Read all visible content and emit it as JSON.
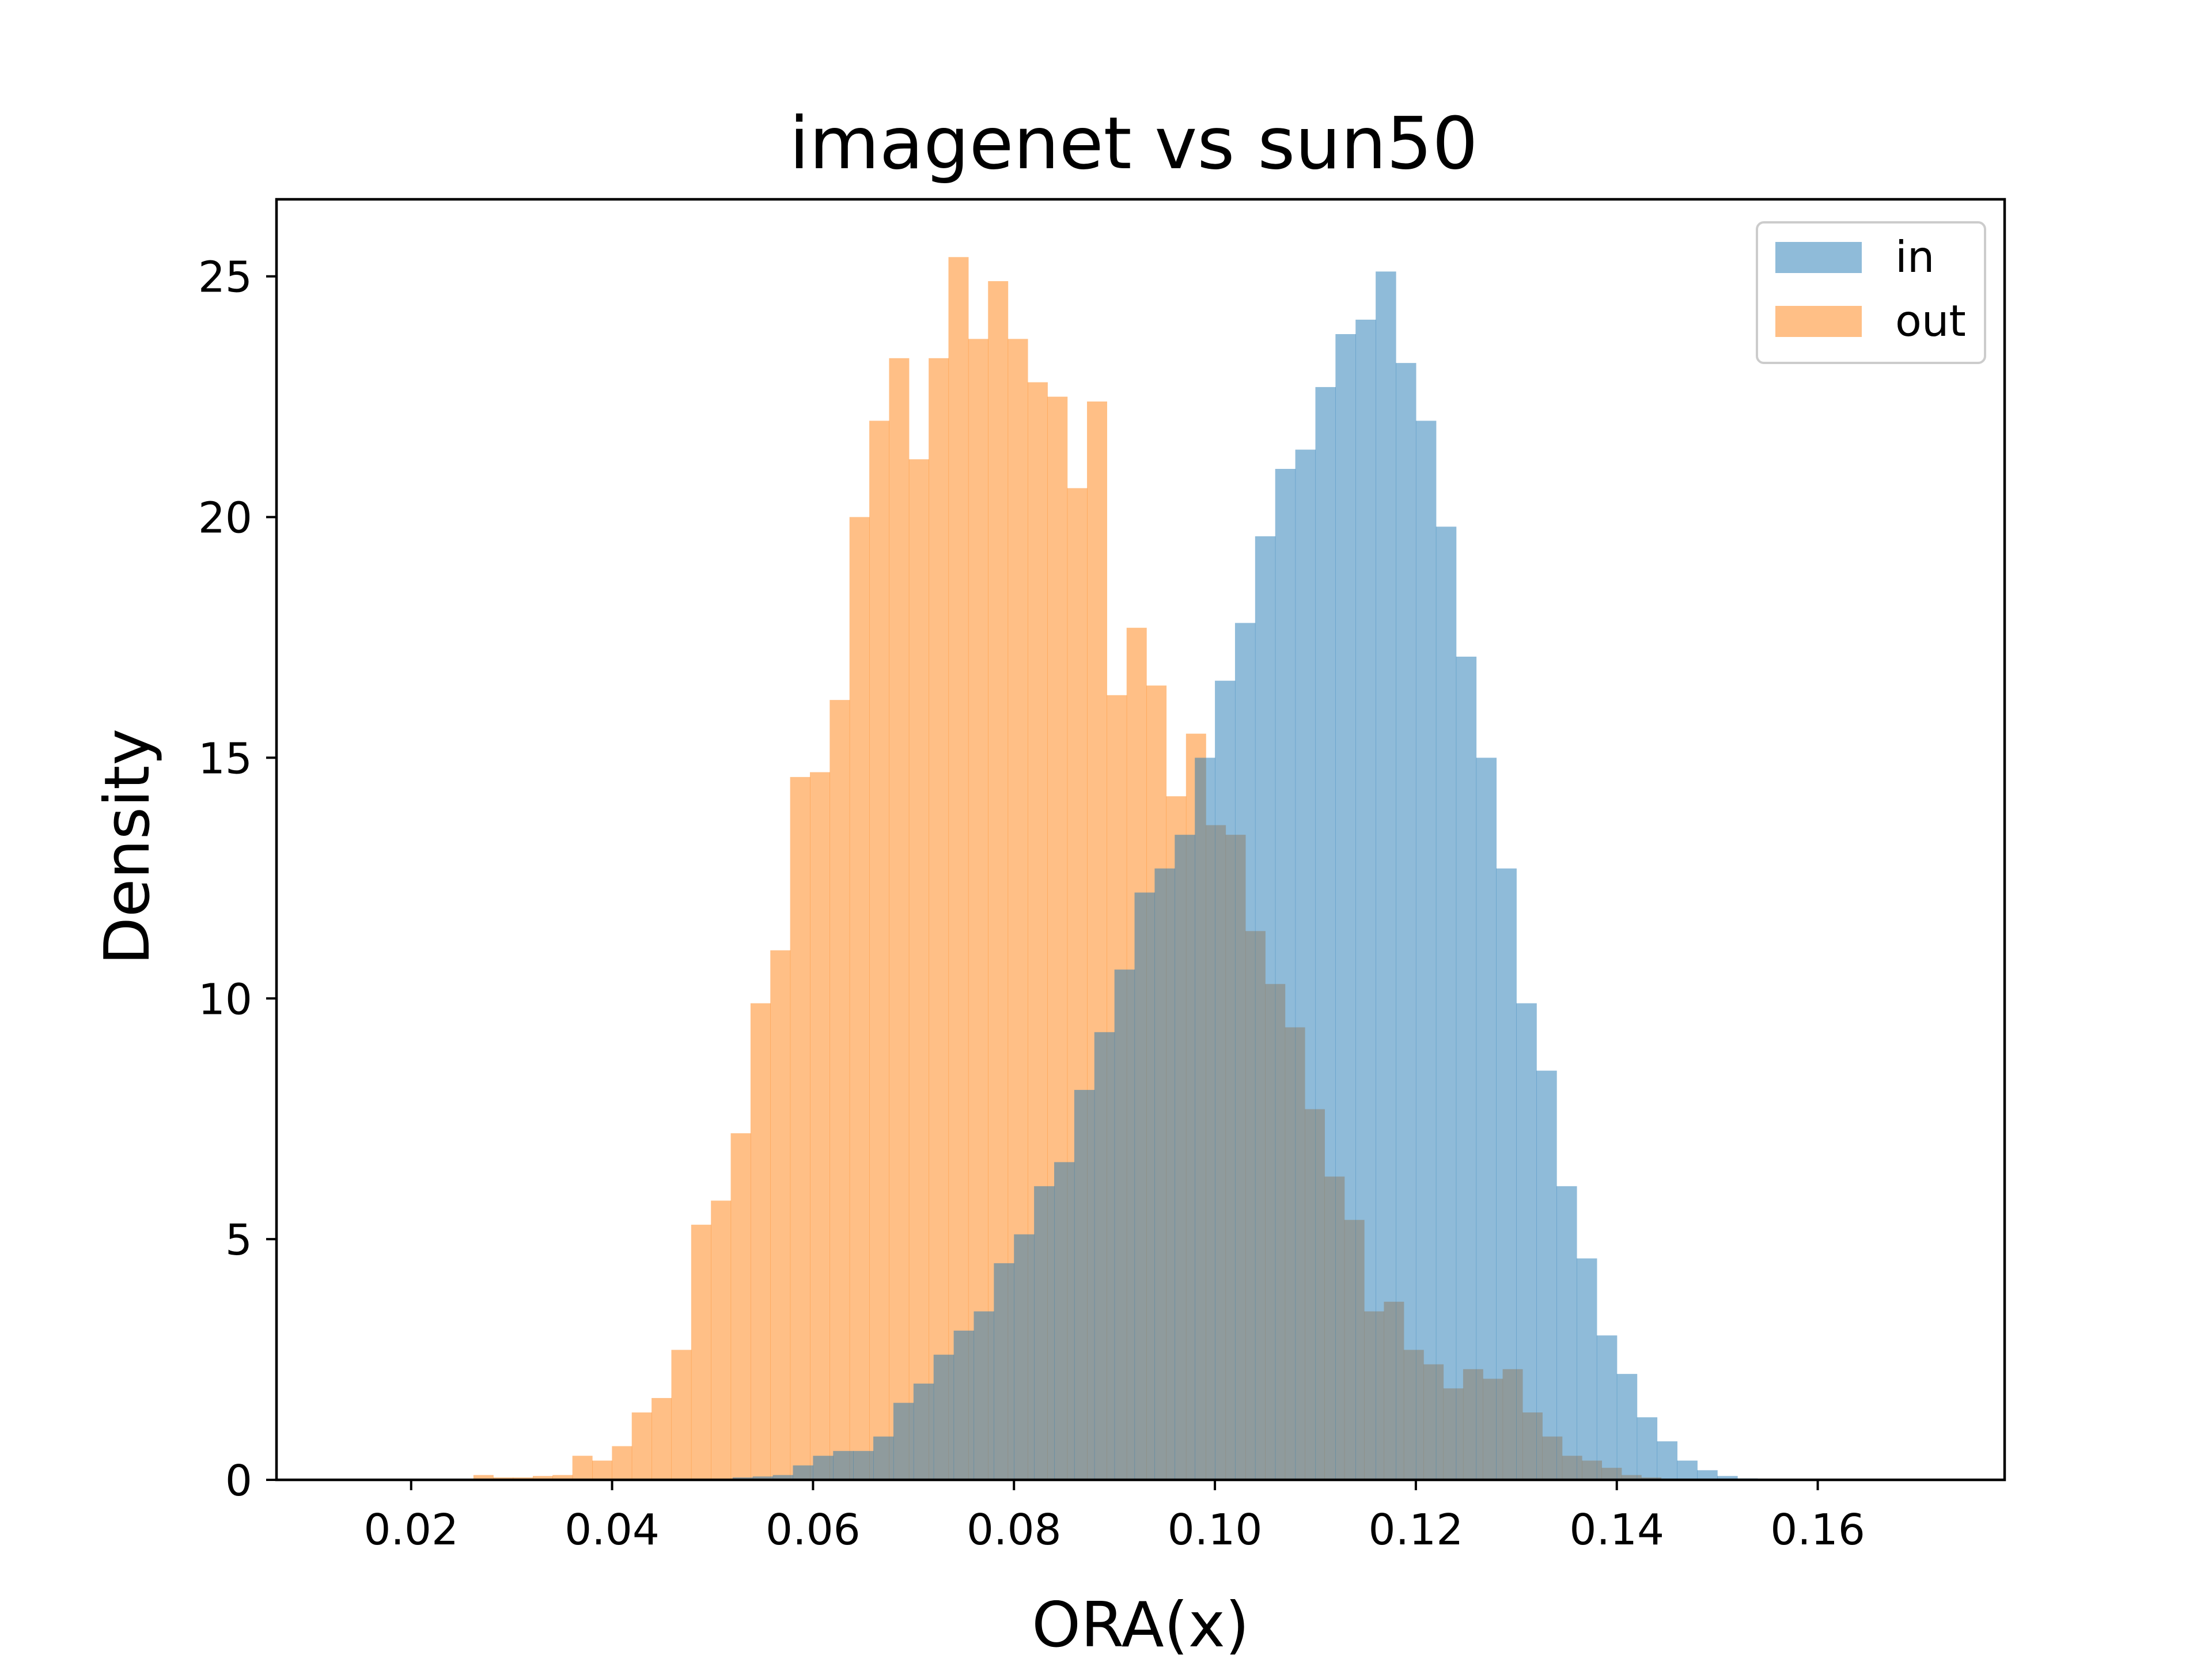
{
  "chart_data": {
    "type": "bar",
    "subtype": "overlapping-histogram",
    "title": "imagenet vs sun50",
    "xlabel": "ORA(x)",
    "ylabel": "Density",
    "xlim": [
      0.0066,
      0.1786
    ],
    "ylim": [
      0,
      26.6
    ],
    "xticks": [
      "0.02",
      "0.04",
      "0.06",
      "0.08",
      "0.10",
      "0.12",
      "0.14",
      "0.16"
    ],
    "xtick_values": [
      0.02,
      0.04,
      0.06,
      0.08,
      0.1,
      0.12,
      0.14,
      0.16
    ],
    "yticks": [
      "0",
      "5",
      "10",
      "15",
      "20",
      "25"
    ],
    "ytick_values": [
      0,
      5,
      10,
      15,
      20,
      25
    ],
    "grid": false,
    "legend_position": "top-right",
    "series": [
      {
        "name": "in",
        "color": "#1f77b4",
        "opacity": 0.5,
        "bin_start": 0.052,
        "bin_width": 0.002,
        "values": [
          0.05,
          0.07,
          0.1,
          0.3,
          0.5,
          0.6,
          0.6,
          0.9,
          1.6,
          2.0,
          2.6,
          3.1,
          3.5,
          4.5,
          5.1,
          6.1,
          6.6,
          8.1,
          9.3,
          10.6,
          12.2,
          12.7,
          13.4,
          15.0,
          16.6,
          17.8,
          19.6,
          21.0,
          21.4,
          22.7,
          23.8,
          24.1,
          25.1,
          23.2,
          22.0,
          19.8,
          17.1,
          15.0,
          12.7,
          9.9,
          8.5,
          6.1,
          4.6,
          3.0,
          2.2,
          1.3,
          0.8,
          0.4,
          0.2,
          0.08,
          0.03
        ]
      },
      {
        "name": "out",
        "color": "#ff7f0e",
        "opacity": 0.5,
        "bin_start": 0.0262,
        "bin_width": 0.00197,
        "values": [
          0.1,
          0.05,
          0.05,
          0.08,
          0.1,
          0.5,
          0.4,
          0.7,
          1.4,
          1.7,
          2.7,
          5.3,
          5.8,
          7.2,
          9.9,
          11.0,
          14.6,
          14.7,
          16.2,
          20.0,
          22.0,
          23.3,
          21.2,
          23.3,
          25.4,
          23.7,
          24.9,
          23.7,
          22.8,
          22.5,
          20.6,
          22.4,
          16.3,
          17.7,
          16.5,
          14.2,
          15.5,
          13.6,
          13.4,
          11.4,
          10.3,
          9.4,
          7.7,
          6.3,
          5.4,
          3.5,
          3.7,
          2.7,
          2.4,
          1.9,
          2.3,
          2.1,
          2.3,
          1.4,
          0.9,
          0.5,
          0.4,
          0.25,
          0.1,
          0.05
        ]
      }
    ]
  }
}
